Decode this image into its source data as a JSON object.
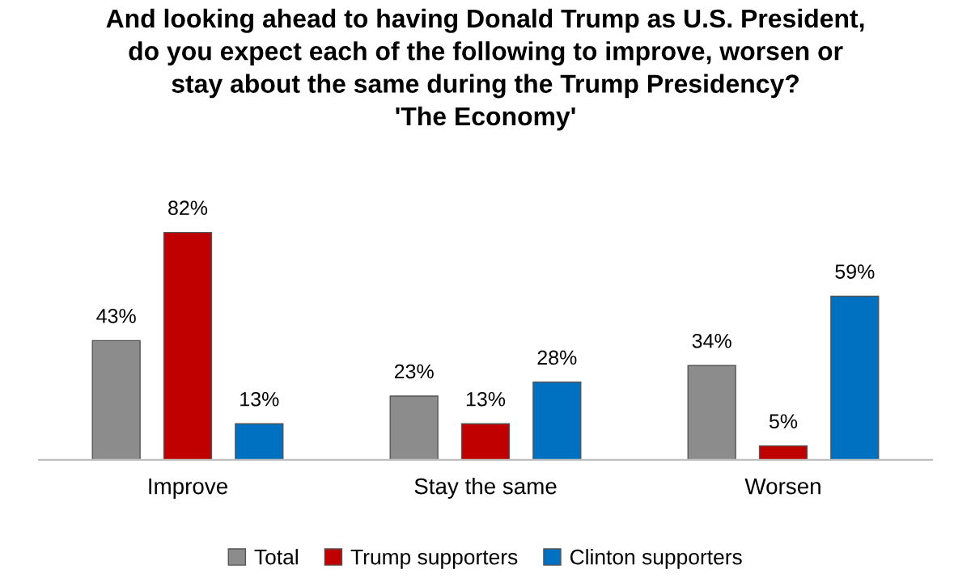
{
  "chart_data": {
    "type": "bar",
    "title": "And looking ahead to having Donald Trump as U.S. President,\ndo you expect each of the following to improve, worsen or\nstay about the same during the Trump Presidency?\n'The Economy'",
    "categories": [
      "Improve",
      "Stay the same",
      "Worsen"
    ],
    "series": [
      {
        "name": "Total",
        "color": "#8c8c8c",
        "values": [
          43,
          23,
          34
        ],
        "value_labels": [
          "43%",
          "23%",
          "34%"
        ]
      },
      {
        "name": "Trump supporters",
        "color": "#c00000",
        "values": [
          82,
          13,
          5
        ],
        "value_labels": [
          "82%",
          "13%",
          "5%"
        ]
      },
      {
        "name": "Clinton supporters",
        "color": "#0070c0",
        "values": [
          13,
          28,
          59
        ],
        "value_labels": [
          "13%",
          "28%",
          "59%"
        ]
      }
    ],
    "legend": "bottom"
  }
}
